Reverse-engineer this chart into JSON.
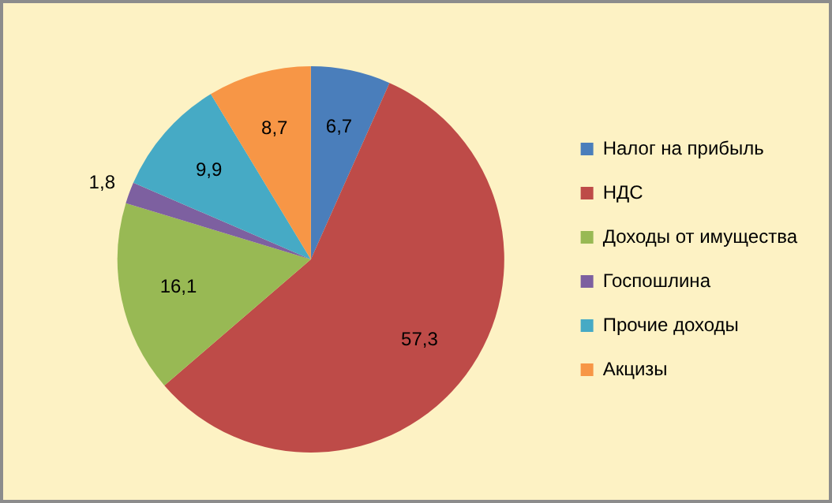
{
  "chart_data": {
    "type": "pie",
    "categories": [
      "Налог на прибыль",
      "НДС",
      "Доходы от имущества",
      "Госпошлина",
      "Прочие доходы",
      "Акцизы"
    ],
    "values": [
      6.7,
      57.3,
      16.1,
      1.8,
      9.9,
      8.7
    ],
    "value_labels": [
      "6,7",
      "57,3",
      "16,1",
      "1,8",
      "9,9",
      "8,7"
    ],
    "colors": [
      "#4a7ebb",
      "#be4b48",
      "#98b954",
      "#7d60a0",
      "#46aac5",
      "#f79646"
    ],
    "legend": "right"
  }
}
